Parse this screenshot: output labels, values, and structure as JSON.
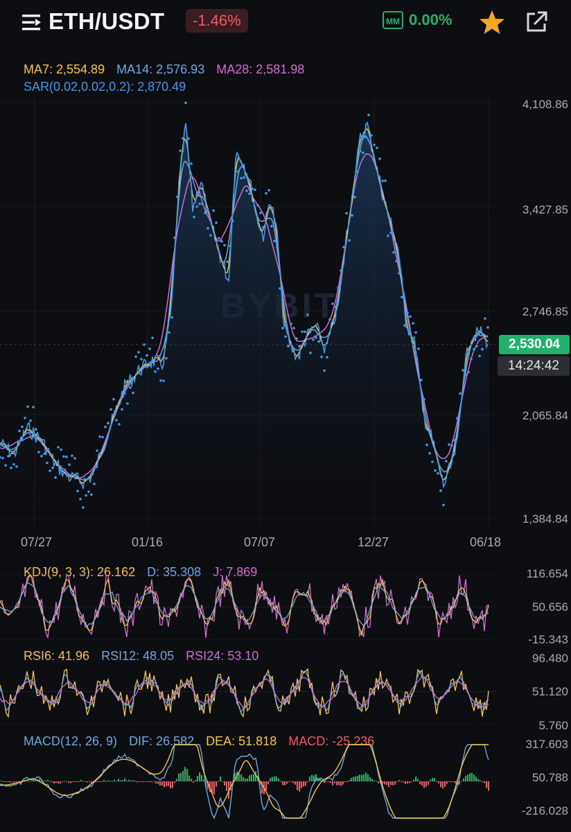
{
  "header": {
    "pair": "ETH/USDT",
    "change": "-1.46%",
    "mm_badge": "MM",
    "mm_value": "0.00%"
  },
  "main_chart": {
    "ma7_label": "MA7: 2,554.89",
    "ma14_label": "MA14: 2,576.93",
    "ma28_label": "MA28: 2,581.98",
    "sar_label": "SAR(0.02,0.02,0.2): 2,870.49",
    "y_ticks": [
      "4,108.86",
      "3,427.85",
      "2,746.85",
      "2,065.84",
      "1,384.84"
    ],
    "x_ticks": [
      "07/27",
      "01/16",
      "07/07",
      "12/27",
      "06/18"
    ],
    "last_price": "2,530.04",
    "countdown": "14:24:42",
    "watermark": "BYBIT"
  },
  "kdj": {
    "label": "KDJ(9, 3, 3): 26.162",
    "d_label": "D: 35.308",
    "j_label": "J: 7.869",
    "y_ticks": [
      "116.654",
      "50.656",
      "-15.343"
    ]
  },
  "rsi": {
    "rsi6_label": "RSI6: 41.96",
    "rsi12_label": "RSI12: 48.05",
    "rsi24_label": "RSI24: 53.10",
    "y_ticks": [
      "96.480",
      "51.120",
      "5.760"
    ]
  },
  "macd": {
    "label": "MACD(12, 26, 9)",
    "dif_label": "DIF: 26.582",
    "dea_label": "DEA: 51.818",
    "macd_label": "MACD: -25.236",
    "y_ticks": [
      "317.603",
      "50.788",
      "-216.028"
    ]
  },
  "colors": {
    "ma7": "#f5c64a",
    "ma14": "#6fa8dc",
    "ma28": "#d56bd0",
    "sar": "#3d9ae8",
    "up": "#25b26b",
    "down": "#f05a63"
  }
}
